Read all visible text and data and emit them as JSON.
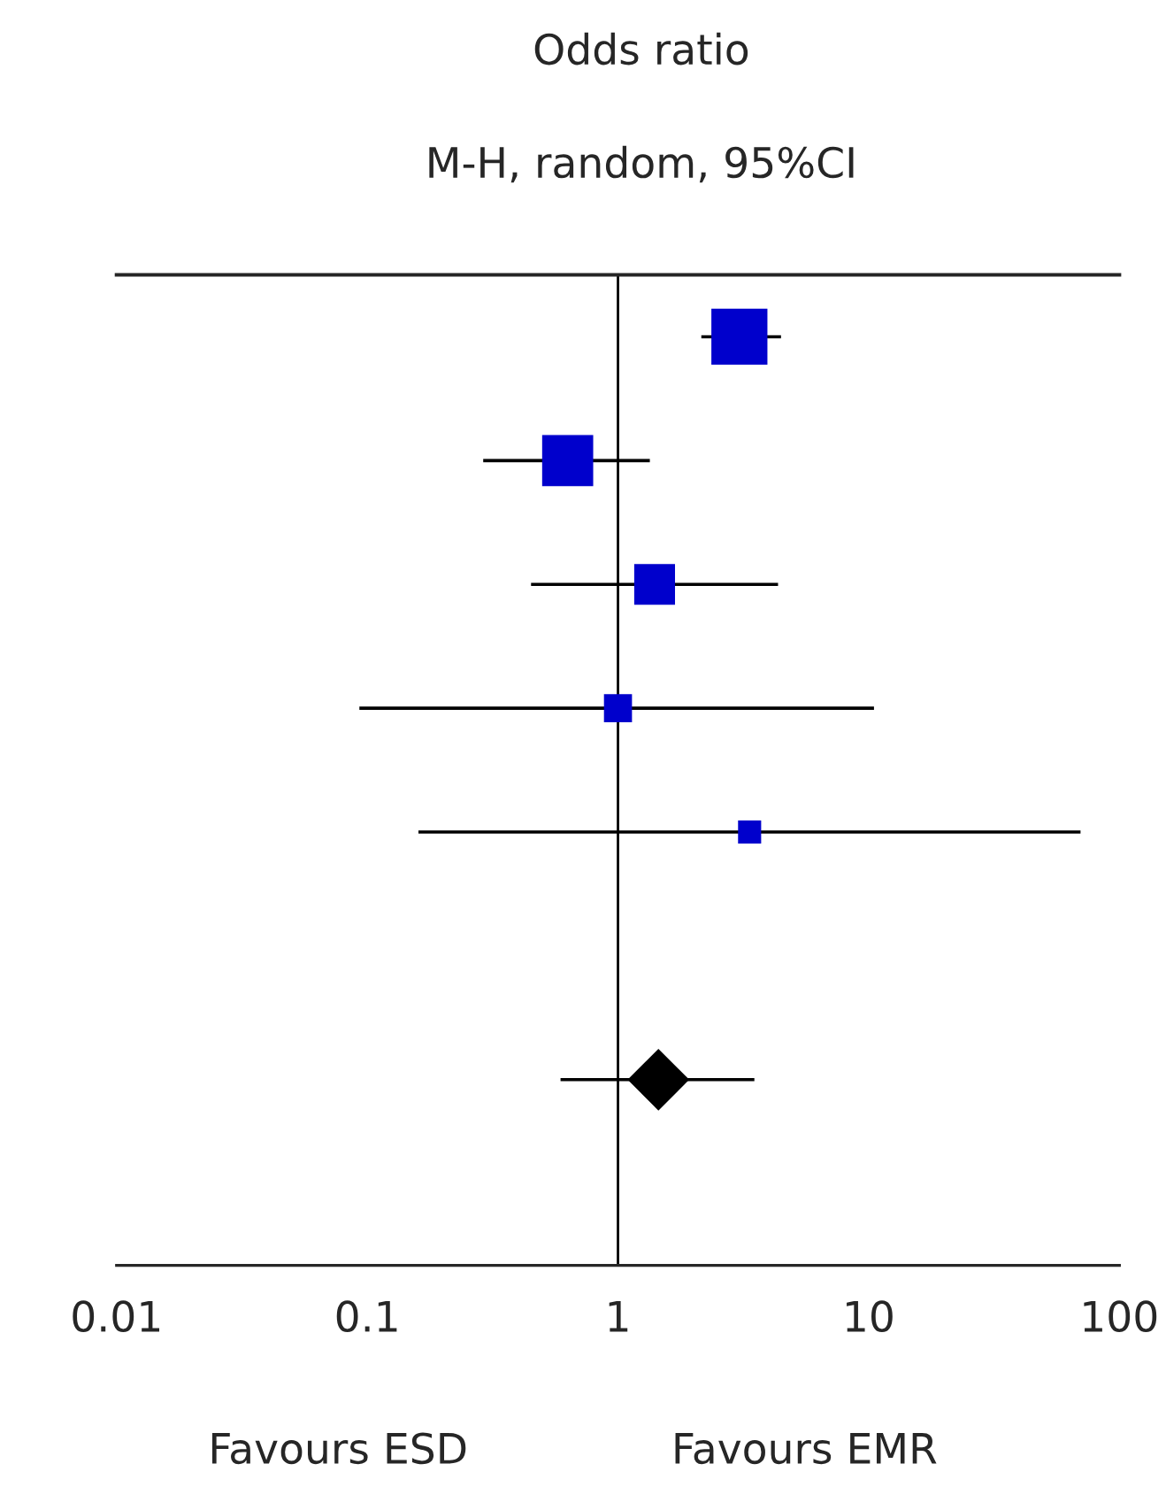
{
  "chart_data": {
    "type": "scatter",
    "orientation": "horizontal",
    "title": "Odds ratio",
    "subtitle": "M-H, random, 95%CI",
    "categories": [
      null,
      null,
      null,
      null,
      null,
      null,
      null,
      null
    ],
    "series": [
      {
        "type": "bubble",
        "color": "#0000cc",
        "marker": "square",
        "values": [
          3.05,
          0.63,
          1.4,
          1.0,
          3.35,
          null,
          null,
          null
        ],
        "errors": [
          [
            2.15,
            4.47
          ],
          [
            0.29,
            1.34
          ],
          [
            0.45,
            4.35
          ],
          [
            0.093,
            10.5
          ],
          [
            0.16,
            70
          ],
          null,
          null,
          null
        ],
        "sizes": [
          1,
          0.83,
          0.53,
          0.25,
          0.17,
          null,
          null,
          null
        ]
      },
      {
        "type": "scatter",
        "color": "#000000",
        "marker": "diamond",
        "values": [
          null,
          null,
          null,
          null,
          null,
          null,
          1.45,
          null
        ],
        "errors": [
          null,
          null,
          null,
          null,
          null,
          null,
          [
            0.59,
            3.5
          ],
          null
        ]
      }
    ],
    "log": "x",
    "xlim": [
      0.01,
      100
    ],
    "xticks": [
      0.01,
      0.1,
      1,
      10,
      100
    ],
    "ref_lines": [
      {
        "axis": "x",
        "value": 1,
        "color": "#000000"
      }
    ],
    "annotations": [
      "Favours ESD",
      "Favours EMR"
    ],
    "tick_labels": "x",
    "grid": false,
    "legend": false
  }
}
